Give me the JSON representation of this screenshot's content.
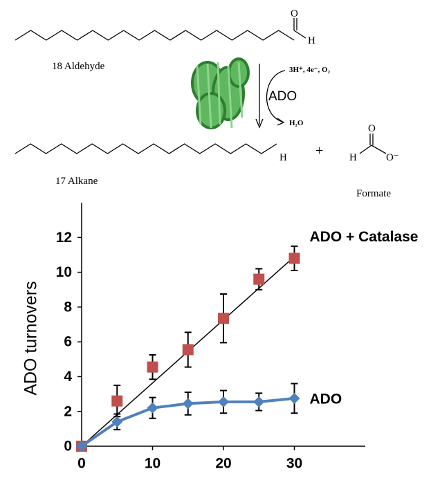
{
  "scheme": {
    "aldehyde": {
      "label": "18 Aldehyde",
      "atoms": [
        "O",
        "H"
      ]
    },
    "alkane": {
      "label": "17 Alkane",
      "atoms": [
        "H"
      ]
    },
    "formate": {
      "label": "Formate",
      "atoms": [
        "O",
        "H",
        "O⁻"
      ]
    },
    "enzyme": "ADO",
    "inputs": "3H⁺, 4e⁻, O₂",
    "output": "H₂O",
    "plus": "+"
  },
  "chart_data": {
    "type": "line",
    "y_label": "ADO turnovers",
    "x": [
      0,
      5,
      10,
      15,
      20,
      25,
      30
    ],
    "xlim": [
      0,
      40
    ],
    "xticks": [
      0,
      10,
      20,
      30
    ],
    "ylim": [
      0,
      14
    ],
    "yticks": [
      0,
      2,
      4,
      6,
      8,
      10,
      12
    ],
    "series": [
      {
        "name": "ADO + Catalase",
        "color": "#c0504d",
        "marker": "square",
        "line_width": 0,
        "values": [
          0,
          2.6,
          4.55,
          5.55,
          7.35,
          9.6,
          10.8
        ],
        "errors": [
          0,
          0.9,
          0.7,
          1.0,
          1.4,
          0.6,
          0.7
        ]
      },
      {
        "name": "ADO",
        "color": "#4f81bd",
        "marker": "diamond",
        "line_width": 4,
        "values": [
          0,
          1.4,
          2.2,
          2.45,
          2.55,
          2.55,
          2.75
        ],
        "errors": [
          0,
          0.45,
          0.6,
          0.65,
          0.65,
          0.5,
          0.85
        ]
      }
    ],
    "fit": {
      "color": "#000000",
      "x": [
        0,
        30
      ],
      "values": [
        0,
        10.9
      ]
    }
  }
}
